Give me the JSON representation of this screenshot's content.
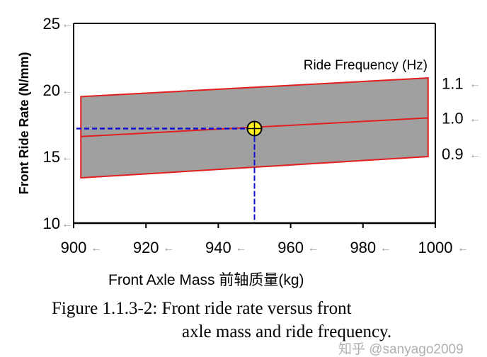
{
  "chart_data": {
    "type": "area",
    "title": "",
    "xlabel": "Front Axle Mass 前轴质量(kg)",
    "ylabel": "Front Ride Rate (N/mm)",
    "y2label": "Ride Frequency (Hz)",
    "xlim": [
      900,
      1000
    ],
    "ylim": [
      10,
      25
    ],
    "xticks": [
      "900",
      "920",
      "940",
      "960",
      "980",
      "1000"
    ],
    "yticks": [
      "10",
      "15",
      "20",
      "25"
    ],
    "y2ticks": [
      {
        "label": "1.1",
        "at_y": 20.5
      },
      {
        "label": "1.0",
        "at_y": 17.9
      },
      {
        "label": "0.9",
        "at_y": 15.2
      }
    ],
    "band": {
      "x": [
        902,
        998
      ],
      "upper": [
        19.5,
        20.9
      ],
      "lower": [
        13.4,
        15.0
      ],
      "fill": "#a0a0a0",
      "edge": "#e02020"
    },
    "center_line": {
      "x": [
        902,
        998
      ],
      "y": [
        16.5,
        17.9
      ],
      "color": "#e02020"
    },
    "marker": {
      "x": 950,
      "y": 17.1,
      "color": "#ffee22"
    },
    "guide_color": "#1010cc",
    "grid": false
  },
  "caption": {
    "line1": "Figure 1.1.3-2: Front ride rate versus front",
    "line2": "axle mass and ride frequency."
  },
  "watermark": "知乎 @sanyago2009"
}
